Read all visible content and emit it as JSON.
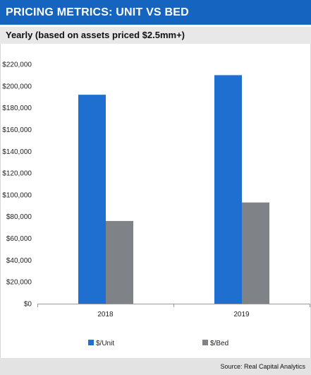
{
  "title": "PRICING METRICS: UNIT VS BED",
  "subtitle": "Yearly (based on assets priced $2.5mm+)",
  "source": "Source: Real Capital Analytics",
  "colors": {
    "title_bg": "#1565c0",
    "unit": "#1f6fd1",
    "bed": "#7f8388",
    "axis": "#9a9a9a"
  },
  "chart_data": {
    "type": "bar",
    "title": "PRICING METRICS: UNIT VS BED",
    "subtitle": "Yearly (based on assets priced $2.5mm+)",
    "categories": [
      "2018",
      "2019"
    ],
    "series": [
      {
        "name": "$/Unit",
        "color": "#1f6fd1",
        "values": [
          192000,
          210000
        ]
      },
      {
        "name": "$/Bed",
        "color": "#7f8388",
        "values": [
          76000,
          93000
        ]
      }
    ],
    "ylim": [
      0,
      220000
    ],
    "y_ticks": [
      0,
      20000,
      40000,
      60000,
      80000,
      100000,
      120000,
      140000,
      160000,
      180000,
      200000,
      220000
    ],
    "y_tick_labels": [
      "$0",
      "$20,000",
      "$40,000",
      "$60,000",
      "$80,000",
      "$100,000",
      "$120,000",
      "$140,000",
      "$160,000",
      "$180,000",
      "$200,000",
      "$220,000"
    ],
    "grid": false,
    "legend_position": "bottom"
  }
}
